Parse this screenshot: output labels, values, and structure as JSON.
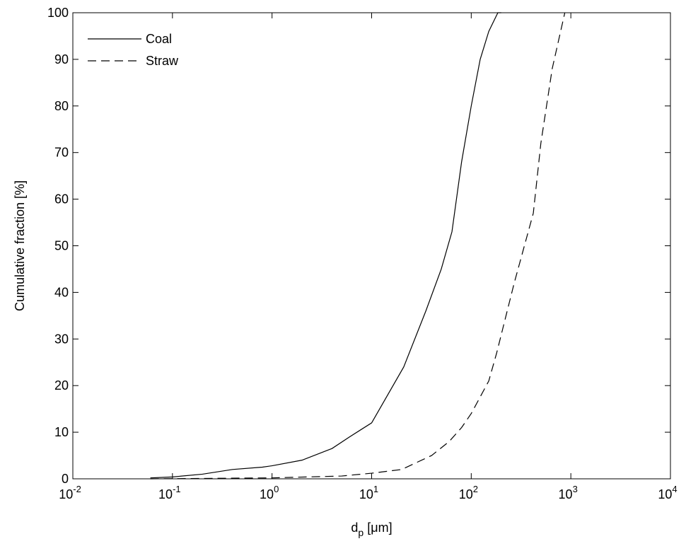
{
  "chart_data": {
    "type": "line",
    "xlog": true,
    "xlabel": {
      "text": "d",
      "sub": "p",
      "rest": " [μm]"
    },
    "ylabel": "Cumulative fraction [%]",
    "xlim": [
      0.01,
      10000
    ],
    "ylim": [
      0,
      100
    ],
    "xticks": [
      {
        "value": 0.01,
        "label": "10",
        "exponent": "-2"
      },
      {
        "value": 0.1,
        "label": "10",
        "exponent": "-1"
      },
      {
        "value": 1,
        "label": "10",
        "exponent": "0"
      },
      {
        "value": 10,
        "label": "10",
        "exponent": "1"
      },
      {
        "value": 100,
        "label": "10",
        "exponent": "2"
      },
      {
        "value": 1000,
        "label": "10",
        "exponent": "3"
      },
      {
        "value": 10000,
        "label": "10",
        "exponent": "4"
      }
    ],
    "yticks": [
      0,
      10,
      20,
      30,
      40,
      50,
      60,
      70,
      80,
      90,
      100
    ],
    "legend": "upper-left",
    "grid": false,
    "series": [
      {
        "name": "Coal",
        "color": "#000000",
        "dash": "solid",
        "x": [
          0.06,
          0.1,
          0.2,
          0.4,
          0.8,
          1,
          2,
          4,
          6,
          10,
          21,
          35,
          50,
          64,
          80,
          100,
          123,
          150,
          185,
          200
        ],
        "values": [
          0.2,
          0.4,
          1,
          2,
          2.5,
          2.8,
          4,
          6.5,
          9,
          12,
          24,
          36,
          45,
          53,
          68,
          80,
          90,
          96,
          100,
          100
        ]
      },
      {
        "name": "Straw",
        "color": "#000000",
        "dash": "dashed",
        "x": [
          0.06,
          1,
          5,
          10,
          20,
          40,
          60,
          80,
          100,
          150,
          180,
          270,
          420,
          500,
          650,
          870
        ],
        "values": [
          0,
          0.2,
          0.6,
          1.2,
          2,
          5,
          8,
          11,
          14,
          21,
          27,
          42,
          57,
          72,
          88,
          100
        ]
      }
    ]
  }
}
